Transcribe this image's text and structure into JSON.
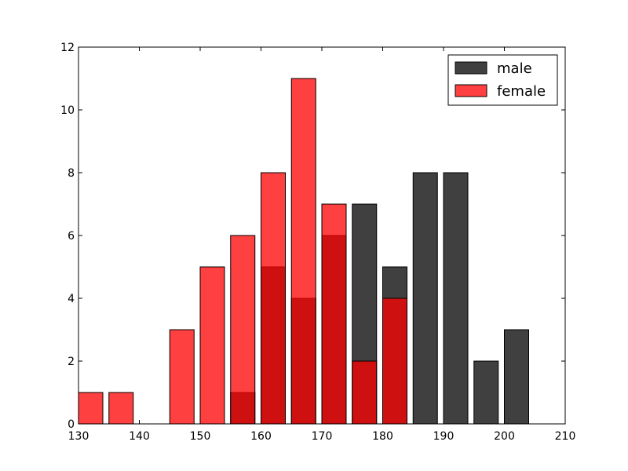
{
  "chart_data": {
    "type": "bar",
    "title": "",
    "xlabel": "",
    "ylabel": "",
    "xlim": [
      130,
      210
    ],
    "ylim": [
      0,
      12
    ],
    "xticks": [
      130,
      140,
      150,
      160,
      170,
      180,
      190,
      200,
      210
    ],
    "yticks": [
      0,
      2,
      4,
      6,
      8,
      10,
      12
    ],
    "grid": false,
    "legend": {
      "position": "top-right"
    },
    "bin_width": 5,
    "series": [
      {
        "name": "male",
        "color": "#000000",
        "opacity": 0.75,
        "bars": [
          {
            "start": 155,
            "value": 1
          },
          {
            "start": 160,
            "value": 5
          },
          {
            "start": 165,
            "value": 4
          },
          {
            "start": 170,
            "value": 6
          },
          {
            "start": 175,
            "value": 7
          },
          {
            "start": 180,
            "value": 5
          },
          {
            "start": 185,
            "value": 8
          },
          {
            "start": 190,
            "value": 8
          },
          {
            "start": 195,
            "value": 2
          },
          {
            "start": 200,
            "value": 3
          }
        ]
      },
      {
        "name": "female",
        "color": "#ff0000",
        "opacity": 0.75,
        "bars": [
          {
            "start": 130,
            "value": 1
          },
          {
            "start": 135,
            "value": 1
          },
          {
            "start": 140,
            "value": 0
          },
          {
            "start": 145,
            "value": 3
          },
          {
            "start": 150,
            "value": 5
          },
          {
            "start": 155,
            "value": 6
          },
          {
            "start": 160,
            "value": 8
          },
          {
            "start": 165,
            "value": 11
          },
          {
            "start": 170,
            "value": 7
          },
          {
            "start": 175,
            "value": 2
          },
          {
            "start": 180,
            "value": 4
          }
        ]
      }
    ]
  }
}
